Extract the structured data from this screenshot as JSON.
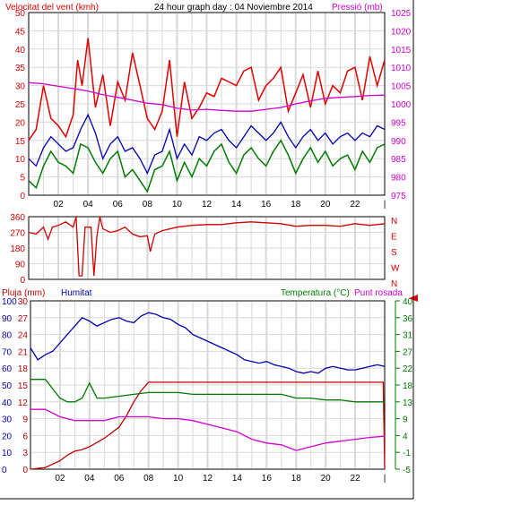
{
  "colors": {
    "wind": "#e00000",
    "gust": "#e00000",
    "wind_dir": "#d00000",
    "avg_wind": "#007a00",
    "pressure": "#d000d0",
    "humidity": "#0000b0",
    "rain": "#c00000",
    "temperature": "#007a00",
    "dewpoint": "#d000d0",
    "grid": "#d8d8d8",
    "right_axis2": "#007a00",
    "marker": "#e00000"
  },
  "x_tick_labels": [
    "02",
    "04",
    "06",
    "08",
    "10",
    "12",
    "14",
    "16",
    "18",
    "20",
    "22",
    "|"
  ],
  "panel1": {
    "left_title": "Velocitat del vent (kmh)",
    "center_title": "24 hour graph day : 04 Noviembre 2014",
    "right_title": "Pressió (mb)",
    "left_ticks": [
      "0",
      "5",
      "10",
      "15",
      "20",
      "25",
      "30",
      "35",
      "40",
      "45",
      "50"
    ],
    "right_ticks": [
      "975",
      "980",
      "985",
      "990",
      "995",
      "1000",
      "1005",
      "1010",
      "1015",
      "1020",
      "1025"
    ]
  },
  "panel2": {
    "left_ticks": [
      "0",
      "90",
      "180",
      "270",
      "360"
    ],
    "right_labels": [
      "N",
      "W",
      "S",
      "E",
      "N"
    ]
  },
  "panel3": {
    "rain_title": "Pluja (mm)",
    "humidity_title": "Humitat",
    "temp_title": "Temperatura (°C)",
    "dew_title": "Punt rosada",
    "humidity_ticks": [
      "0",
      "10",
      "20",
      "30",
      "40",
      "50",
      "60",
      "70",
      "80",
      "90",
      "100"
    ],
    "rain_ticks": [
      "0",
      "3",
      "6",
      "9",
      "12",
      "15",
      "18",
      "21",
      "24",
      "27",
      "30"
    ],
    "temp_ticks": [
      "-5",
      "-1",
      "4",
      "9",
      "13",
      "18",
      "22",
      "27",
      "31",
      "36",
      "40"
    ]
  },
  "chart_data": [
    {
      "type": "line",
      "title": "24 hour graph day : 04 Noviembre 2014",
      "ylabel": "Velocitat del vent (kmh)",
      "y2label": "Pressió (mb)",
      "ylim": [
        0,
        50
      ],
      "y2lim": [
        975,
        1025
      ],
      "x_unit": "hour",
      "xlim": [
        0,
        24
      ],
      "series": [
        {
          "name": "Velocitat del vent (gust)",
          "axis": "y",
          "x": [
            0,
            0.5,
            1,
            1.5,
            2,
            2.5,
            3,
            3.3,
            3.6,
            4,
            4.5,
            5,
            5.5,
            6,
            6.5,
            7,
            7.5,
            8,
            8.5,
            9,
            9.5,
            10,
            10.5,
            11,
            11.5,
            12,
            12.5,
            13,
            13.5,
            14,
            14.5,
            15,
            15.5,
            16,
            16.5,
            17,
            17.5,
            18,
            18.5,
            19,
            19.5,
            20,
            20.5,
            21,
            21.5,
            22,
            22.5,
            23,
            23.5,
            24
          ],
          "y": [
            15,
            18,
            30,
            21,
            19,
            16,
            22,
            37,
            30,
            43,
            24,
            33,
            19,
            31,
            26,
            39,
            30,
            21,
            18,
            23,
            37,
            16,
            31,
            21,
            24,
            28,
            27,
            32,
            31,
            30,
            34,
            35,
            26,
            30,
            32,
            35,
            23,
            28,
            33,
            24,
            34,
            25,
            30,
            28,
            34,
            35,
            26,
            38,
            30,
            37
          ]
        },
        {
          "name": "Velocitat mitjana",
          "axis": "y",
          "x": [
            0,
            0.5,
            1,
            1.5,
            2,
            2.5,
            3,
            3.5,
            4,
            4.5,
            5,
            5.5,
            6,
            6.5,
            7,
            7.5,
            8,
            8.5,
            9,
            9.5,
            10,
            10.5,
            11,
            11.5,
            12,
            12.5,
            13,
            13.5,
            14,
            14.5,
            15,
            15.5,
            16,
            16.5,
            17,
            17.5,
            18,
            18.5,
            19,
            19.5,
            20,
            20.5,
            21,
            21.5,
            22,
            22.5,
            23,
            23.5,
            24
          ],
          "y": [
            4,
            2,
            8,
            12,
            9,
            8,
            6,
            14,
            13,
            9,
            6,
            10,
            12,
            5,
            7,
            4,
            1,
            7,
            8,
            12,
            4,
            9,
            5,
            10,
            8,
            12,
            14,
            9,
            6,
            11,
            13,
            10,
            8,
            12,
            15,
            11,
            6,
            10,
            13,
            9,
            12,
            8,
            10,
            11,
            7,
            12,
            9,
            13,
            14
          ]
        },
        {
          "name": "Velocitat del vent",
          "axis": "y",
          "x": [
            0,
            0.5,
            1,
            1.5,
            2,
            2.5,
            3,
            3.5,
            4,
            4.5,
            5,
            5.5,
            6,
            6.5,
            7,
            7.5,
            8,
            8.5,
            9,
            9.5,
            10,
            10.5,
            11,
            11.5,
            12,
            12.5,
            13,
            13.5,
            14,
            14.5,
            15,
            15.5,
            16,
            16.5,
            17,
            17.5,
            18,
            18.5,
            19,
            19.5,
            20,
            20.5,
            21,
            21.5,
            22,
            22.5,
            23,
            23.5,
            24
          ],
          "y": [
            10,
            8,
            13,
            16,
            14,
            12,
            13,
            18,
            22,
            17,
            10,
            14,
            16,
            12,
            13,
            10,
            6,
            11,
            12,
            18,
            10,
            14,
            11,
            16,
            15,
            17,
            18,
            15,
            13,
            16,
            19,
            17,
            15,
            17,
            20,
            16,
            13,
            16,
            18,
            15,
            17,
            14,
            16,
            17,
            15,
            17,
            16,
            19,
            18
          ]
        },
        {
          "name": "Pressió",
          "axis": "y2",
          "x": [
            0,
            1,
            2,
            3,
            4,
            5,
            6,
            7,
            8,
            9,
            10,
            11,
            12,
            13,
            14,
            15,
            16,
            17,
            18,
            19,
            20,
            21,
            22,
            23,
            24
          ],
          "y": [
            1005.8,
            1005.5,
            1004.8,
            1004.2,
            1003.5,
            1002.5,
            1001.8,
            1001.0,
            1000.2,
            999.8,
            998.8,
            998.3,
            998.5,
            998.2,
            998.0,
            998.0,
            998.5,
            999.0,
            1000.0,
            1000.8,
            1001.5,
            1001.8,
            1002.0,
            1002.3,
            1002.4
          ]
        }
      ]
    },
    {
      "type": "line",
      "ylabel": "",
      "ylim": [
        0,
        360
      ],
      "x_unit": "hour",
      "xlim": [
        0,
        24
      ],
      "series": [
        {
          "name": "Direcció del vent",
          "x": [
            0,
            0.5,
            1,
            1.3,
            1.6,
            2,
            2.5,
            3,
            3.2,
            3.4,
            3.6,
            3.8,
            4,
            4.2,
            4.4,
            4.6,
            4.8,
            5,
            5.5,
            6,
            6.5,
            7,
            7.5,
            8,
            8.2,
            8.5,
            9,
            10,
            11,
            12,
            13,
            14,
            15,
            16,
            17,
            18,
            19,
            20,
            21,
            22,
            23,
            24
          ],
          "y": [
            270,
            260,
            300,
            230,
            300,
            310,
            330,
            300,
            360,
            20,
            20,
            300,
            300,
            300,
            20,
            250,
            360,
            290,
            270,
            280,
            300,
            260,
            245,
            250,
            160,
            260,
            280,
            300,
            310,
            315,
            315,
            325,
            330,
            325,
            320,
            305,
            310,
            310,
            305,
            320,
            310,
            320
          ]
        }
      ]
    },
    {
      "type": "line",
      "ylabel": "Humitat",
      "ylim": [
        0,
        100
      ],
      "x_unit": "hour",
      "xlim": [
        0,
        24
      ],
      "series": [
        {
          "name": "Humitat",
          "axis": "humidity",
          "x": [
            0,
            0.5,
            1,
            1.5,
            2,
            2.5,
            3,
            3.5,
            4,
            4.5,
            5,
            5.5,
            6,
            6.5,
            7,
            7.5,
            8,
            8.5,
            9,
            9.5,
            10,
            10.5,
            11,
            11.5,
            12,
            12.5,
            13,
            13.5,
            14,
            14.5,
            15,
            15.5,
            16,
            16.5,
            17,
            17.5,
            18,
            18.5,
            19,
            19.5,
            20,
            20.5,
            21,
            21.5,
            22,
            22.5,
            23,
            23.5,
            24
          ],
          "y": [
            72,
            65,
            68,
            70,
            75,
            80,
            85,
            90,
            88,
            85,
            87,
            89,
            90,
            88,
            87,
            91,
            93,
            92,
            90,
            89,
            86,
            84,
            80,
            78,
            76,
            74,
            72,
            70,
            68,
            65,
            64,
            63,
            64,
            62,
            61,
            60,
            58,
            57,
            58,
            57,
            60,
            61,
            60,
            59,
            59,
            60,
            61,
            62,
            61
          ]
        },
        {
          "name": "Pluja (mm)",
          "axis": "rain",
          "x": [
            0,
            1,
            2,
            2.5,
            3,
            3.5,
            4,
            5,
            6,
            6.5,
            7,
            7.5,
            8,
            9,
            10,
            12,
            14,
            16,
            18,
            20,
            22,
            23,
            23.9,
            24
          ],
          "y": [
            0,
            0.3,
            1.5,
            2.5,
            3.2,
            3.5,
            4,
            5.5,
            7.5,
            9.5,
            12,
            14,
            15.5,
            15.5,
            15.5,
            15.5,
            15.5,
            15.5,
            15.5,
            15.5,
            15.5,
            15.5,
            15.5,
            0
          ]
        },
        {
          "name": "Temperatura (°C)",
          "axis": "temp",
          "x": [
            0,
            1,
            2,
            2.5,
            3,
            3.5,
            4,
            4.5,
            5,
            6,
            7,
            8,
            9,
            10,
            11,
            12,
            13,
            14,
            15,
            16,
            17,
            18,
            19,
            20,
            21,
            22,
            23,
            24
          ],
          "y": [
            19,
            19,
            14,
            13,
            13,
            14,
            18,
            14,
            14,
            14.5,
            15,
            15.5,
            15.5,
            15.5,
            15,
            15,
            15,
            15,
            15,
            15,
            15,
            14,
            14,
            13.5,
            13.5,
            13,
            13,
            13
          ]
        },
        {
          "name": "Punt rosada",
          "axis": "temp",
          "x": [
            0,
            1,
            2,
            3,
            4,
            5,
            6,
            7,
            8,
            9,
            10,
            11,
            12,
            13,
            14,
            15,
            16,
            17,
            18,
            19,
            20,
            21,
            22,
            23,
            24
          ],
          "y": [
            11,
            11,
            9,
            8,
            8,
            8,
            9,
            9,
            9,
            8.5,
            8.5,
            8,
            7,
            6,
            5,
            3,
            2,
            1.5,
            0,
            1,
            2,
            2.5,
            3,
            3.5,
            3.8
          ]
        }
      ]
    }
  ]
}
